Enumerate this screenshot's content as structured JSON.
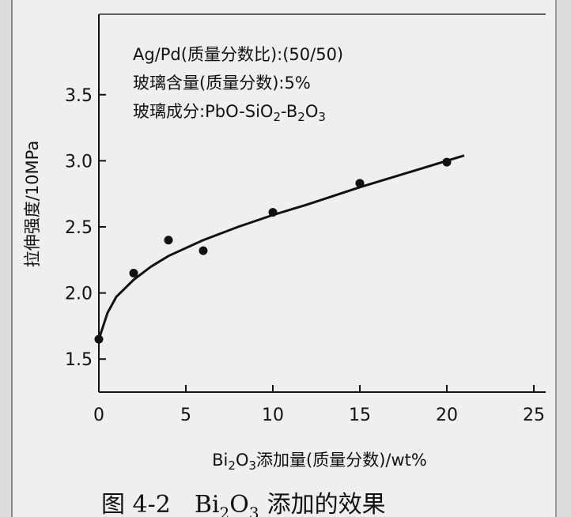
{
  "chart_data": {
    "type": "scatter",
    "title": "",
    "xlabel": "Bi2O3添加量(质量分数)/wt%",
    "ylabel": "拉伸强度/10MPa",
    "xlim": [
      0,
      25
    ],
    "ylim": [
      1.25,
      3.75
    ],
    "xticks": [
      "0",
      "5",
      "10",
      "15",
      "20",
      "25"
    ],
    "yticks": [
      "1.5",
      "2.0",
      "2.5",
      "3.0",
      "3.5"
    ],
    "points": [
      {
        "x": 0,
        "y": 1.65
      },
      {
        "x": 2,
        "y": 2.15
      },
      {
        "x": 4,
        "y": 2.4
      },
      {
        "x": 6,
        "y": 2.32
      },
      {
        "x": 10,
        "y": 2.61
      },
      {
        "x": 15,
        "y": 2.83
      },
      {
        "x": 20,
        "y": 2.99
      }
    ],
    "fit_curve": [
      {
        "x": 0,
        "y": 1.65
      },
      {
        "x": 0.5,
        "y": 1.85
      },
      {
        "x": 1,
        "y": 1.97
      },
      {
        "x": 2,
        "y": 2.1
      },
      {
        "x": 3,
        "y": 2.2
      },
      {
        "x": 4,
        "y": 2.28
      },
      {
        "x": 6,
        "y": 2.4
      },
      {
        "x": 8,
        "y": 2.5
      },
      {
        "x": 10,
        "y": 2.59
      },
      {
        "x": 12,
        "y": 2.67
      },
      {
        "x": 15,
        "y": 2.8
      },
      {
        "x": 18,
        "y": 2.92
      },
      {
        "x": 21,
        "y": 3.04
      }
    ],
    "annotations": [
      "Ag/Pd(质量分数比):(50/50)",
      "玻璃含量(质量分数):5%",
      "玻璃成分:PbO-SiO2-B2O3"
    ],
    "grid": false
  },
  "caption": {
    "prefix": "图 4-2",
    "suffix": "添加的效果"
  }
}
